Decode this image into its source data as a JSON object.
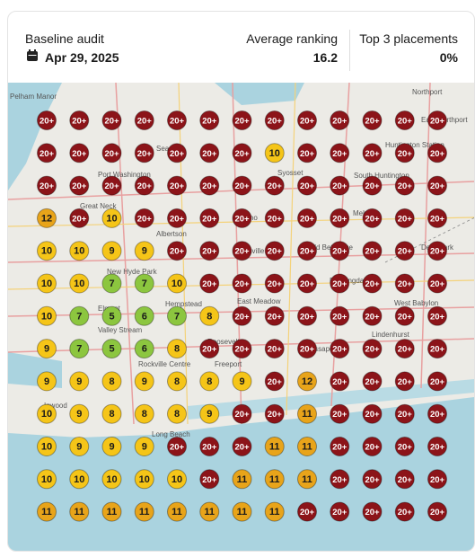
{
  "header": {
    "title": "Baseline audit",
    "date": "Apr 29, 2025",
    "average_label": "Average ranking",
    "average_value": "16.2",
    "top3_label": "Top 3 placements",
    "top3_value": "0%"
  },
  "map": {
    "places": [
      "Pelham Manor",
      "Northport",
      "East Northport",
      "Sea Cliff",
      "Huntington Station",
      "Port Washington",
      "Syosset",
      "South Huntington",
      "Great Neck",
      "Jericho",
      "Melville",
      "Albertson",
      "Hicksville",
      "Old Bethpage",
      "Deer Park",
      "New Hyde Park",
      "Farmingdale",
      "Elmont",
      "Hempstead",
      "East Meadow",
      "West Babylon",
      "Valley Stream",
      "Roosevelt",
      "Massapequa",
      "Lindenhurst",
      "Rockville Centre",
      "Freeport",
      "Inwood",
      "Long Beach"
    ]
  },
  "grid": {
    "rows": [
      [
        "20+",
        "20+",
        "20+",
        "20+",
        "20+",
        "20+",
        "20+",
        "20+",
        "20+",
        "20+",
        "20+",
        "20+",
        "20+"
      ],
      [
        "20+",
        "20+",
        "20+",
        "20+",
        "20+",
        "20+",
        "20+",
        10,
        "20+",
        "20+",
        "20+",
        "20+",
        "20+"
      ],
      [
        "20+",
        "20+",
        "20+",
        "20+",
        "20+",
        "20+",
        "20+",
        "20+",
        "20+",
        "20+",
        "20+",
        "20+",
        "20+"
      ],
      [
        12,
        "20+",
        10,
        "20+",
        "20+",
        "20+",
        "20+",
        "20+",
        "20+",
        "20+",
        "20+",
        "20+",
        "20+"
      ],
      [
        10,
        10,
        9,
        9,
        "20+",
        "20+",
        "20+",
        "20+",
        "20+",
        "20+",
        "20+",
        "20+",
        "20+"
      ],
      [
        10,
        10,
        7,
        7,
        10,
        "20+",
        "20+",
        "20+",
        "20+",
        "20+",
        "20+",
        "20+",
        "20+"
      ],
      [
        10,
        7,
        5,
        6,
        7,
        8,
        "20+",
        "20+",
        "20+",
        "20+",
        "20+",
        "20+",
        "20+"
      ],
      [
        9,
        7,
        5,
        6,
        8,
        "20+",
        "20+",
        "20+",
        "20+",
        "20+",
        "20+",
        "20+",
        "20+"
      ],
      [
        9,
        9,
        8,
        9,
        8,
        8,
        9,
        "20+",
        12,
        "20+",
        "20+",
        "20+",
        "20+"
      ],
      [
        10,
        9,
        8,
        8,
        8,
        9,
        "20+",
        "20+",
        11,
        "20+",
        "20+",
        "20+",
        "20+"
      ],
      [
        10,
        9,
        9,
        9,
        "20+",
        "20+",
        "20+",
        11,
        11,
        "20+",
        "20+",
        "20+",
        "20+"
      ],
      [
        10,
        10,
        10,
        10,
        10,
        "20+",
        11,
        11,
        11,
        "20+",
        "20+",
        "20+",
        "20+"
      ],
      [
        11,
        11,
        11,
        11,
        11,
        11,
        11,
        11,
        "20+",
        "20+",
        "20+",
        "20+",
        "20+"
      ]
    ]
  }
}
